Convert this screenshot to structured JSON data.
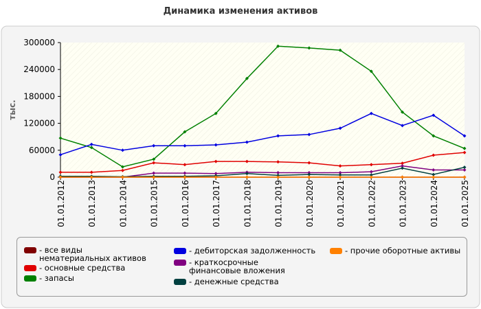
{
  "chart_data": {
    "type": "line",
    "title": "Динамика изменения активов",
    "y_label": "тыс.",
    "categories": [
      "01.01.2012",
      "01.01.2013",
      "01.01.2014",
      "01.01.2015",
      "01.01.2016",
      "01.01.2017",
      "01.01.2018",
      "01.01.2019",
      "01.01.2020",
      "01.01.2021",
      "01.01.2022",
      "01.01.2023",
      "01.01.2024",
      "01.01.2025"
    ],
    "ylim": [
      0,
      300000
    ],
    "yticks": [
      0,
      60000,
      120000,
      180000,
      240000,
      300000
    ],
    "series": [
      {
        "name": "- все виды нематериальных активов",
        "color": "#800000",
        "values": [
          0,
          0,
          0,
          0,
          0,
          0,
          0,
          0,
          0,
          0,
          0,
          0,
          0,
          0
        ]
      },
      {
        "name": "- основные средства",
        "color": "#e00000",
        "values": [
          11000,
          11000,
          15000,
          32000,
          28000,
          35000,
          35000,
          34000,
          32000,
          25000,
          28000,
          31000,
          49000,
          55000
        ]
      },
      {
        "name": "- запасы",
        "color": "#008000",
        "values": [
          87000,
          66000,
          23000,
          40000,
          101000,
          142000,
          220000,
          292000,
          288000,
          283000,
          236000,
          145000,
          92000,
          64000
        ]
      },
      {
        "name": "- дебиторская задолженность",
        "color": "#0000e0",
        "values": [
          50000,
          73000,
          60000,
          70000,
          70000,
          72000,
          78000,
          92000,
          95000,
          109000,
          142000,
          115000,
          138000,
          92000
        ]
      },
      {
        "name": "- краткосрочные финансовые вложения",
        "color": "#800080",
        "values": [
          0,
          0,
          0,
          9000,
          9000,
          8000,
          11000,
          10000,
          10000,
          10000,
          12000,
          25000,
          16000,
          16000
        ]
      },
      {
        "name": "- денежные средства",
        "color": "#004040",
        "values": [
          2000,
          2000,
          1000,
          2000,
          2000,
          3000,
          8000,
          4000,
          6000,
          5000,
          5000,
          20000,
          6000,
          22000
        ]
      },
      {
        "name": "- прочие оборотные активы",
        "color": "#ff8000",
        "values": [
          0,
          0,
          0,
          0,
          0,
          0,
          0,
          0,
          0,
          0,
          0,
          0,
          0,
          0
        ]
      }
    ]
  }
}
